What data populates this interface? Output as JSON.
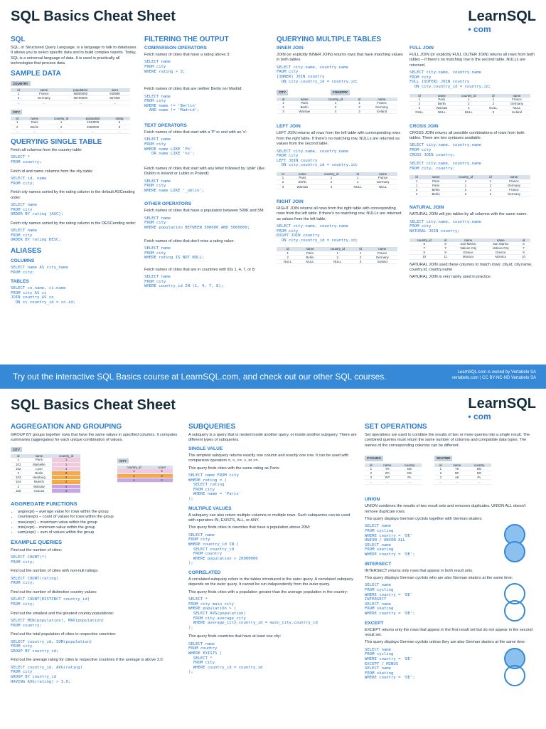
{
  "page1": {
    "title": "SQL Basics Cheat Sheet",
    "logo_main": "LearnSQL",
    "logo_sub": "• com",
    "col1": {
      "sql_heading": "SQL",
      "sql_text": "SQL, or Structured Query Language, is a language to talk to databases. It allows you to select specific data and to build complex reports. Today, SQL is a universal language of data. It is used in practically all technologies that process data.",
      "sample_heading": "SAMPLE DATA",
      "country_caption": "COUNTRY",
      "country_headers": [
        "id",
        "name",
        "population",
        "area"
      ],
      "country_rows": [
        [
          "1",
          "France",
          "66600000",
          "640680"
        ],
        [
          "2",
          "Germany",
          "80700000",
          "357000"
        ],
        [
          "...",
          "...",
          "...",
          "..."
        ]
      ],
      "city_caption": "CITY",
      "city_headers": [
        "id",
        "name",
        "country_id",
        "population",
        "rating"
      ],
      "city_rows": [
        [
          "1",
          "Paris",
          "1",
          "2243000",
          "5"
        ],
        [
          "2",
          "Berlin",
          "2",
          "3460000",
          "3"
        ],
        [
          "...",
          "...",
          "...",
          "...",
          "..."
        ]
      ],
      "qst_heading": "QUERYING SINGLE TABLE",
      "qst_t1": "Fetch all columns from the country table:",
      "qst_c1": "SELECT *\nFROM country;",
      "qst_t2": "Fetch id and name columns from the city table:",
      "qst_c2": "SELECT id, name\nFROM city;",
      "qst_t3": "Fetch city names sorted by the rating column in the default ASCending order:",
      "qst_c3": "SELECT name\nFROM city\nORDER BY rating [ASC];",
      "qst_t4": "Fetch city names sorted by the rating column in the DESCending order:",
      "qst_c4": "SELECT name\nFROM city\nORDER BY rating DESC;",
      "alias_heading": "ALIASES",
      "alias_cols": "COLUMNS",
      "alias_c1": "SELECT name AS city_name\nFROM city;",
      "alias_tables": "TABLES",
      "alias_c2": "SELECT co.name, ci.name\nFROM city AS ci\nJOIN country AS co\n  ON ci.country_id = co.id;"
    },
    "col2": {
      "heading": "FILTERING THE OUTPUT",
      "comp_heading": "COMPARISON OPERATORS",
      "t1": "Fetch names of cities that have a rating above 3:",
      "c1": "SELECT name\nFROM city\nWHERE rating > 3;",
      "t2": "Fetch names of cities that are neither Berlin nor Madrid:",
      "c2": "SELECT name\nFROM city\nWHERE name != 'Berlin'\n  AND name != 'Madrid';",
      "text_heading": "TEXT OPERATORS",
      "t3": "Fetch names of cities that start with a 'P' or end with an 's':",
      "c3": "SELECT name\nFROM city\nWHERE name LIKE 'P%'\n   OR name LIKE '%s';",
      "t4": "Fetch names of cities that start with any letter followed by 'ublin' (like Dublin in Ireland or Lublin in Poland):",
      "c4": "SELECT name\nFROM city\nWHERE name LIKE '_ublin';",
      "other_heading": "OTHER OPERATORS",
      "t5": "Fetch names of cities that have a population between 500K and 5M:",
      "c5": "SELECT name\nFROM city\nWHERE population BETWEEN 500000 AND 5000000;",
      "t6": "Fetch names of cities that don't miss a rating value:",
      "c6": "SELECT name\nFROM city\nWHERE rating IS NOT NULL;",
      "t7": "Fetch names of cities that are in countries with IDs 1, 4, 7, or 8:",
      "c7": "SELECT name\nFROM city\nWHERE country_id IN (1, 4, 7, 8);"
    },
    "col3": {
      "heading": "QUERYING MULTIPLE TABLES",
      "inner_heading": "INNER JOIN",
      "inner_text": "JOIN (or explicitly INNER JOIN) returns rows that have matching values in both tables.",
      "inner_code": "SELECT city.name, country.name\nFROM city\n[INNER] JOIN country\n  ON city.country_id = country.id;",
      "left_heading": "LEFT JOIN",
      "left_text": "LEFT JOIN returns all rows from the left table with corresponding rows from the right table. If there's no matching row, NULLs are returned as values from the second table.",
      "left_code": "SELECT city.name, country.name\nFROM city\nLEFT JOIN country\n  ON city.country_id = country.id;",
      "right_heading": "RIGHT JOIN",
      "right_text": "RIGHT JOIN returns all rows from the right table with corresponding rows from the left table. If there's no matching row, NULLs are returned as values from the left table.",
      "right_code": "SELECT city.name, country.name\nFROM city\nRIGHT JOIN country\n  ON city.country_id = country.id;"
    },
    "col4": {
      "full_heading": "FULL JOIN",
      "full_text": "FULL JOIN (or explicitly FULL OUTER JOIN) returns all rows from both tables – if there's no matching row in the second table, NULLs are returned.",
      "full_code": "SELECT city.name, country.name\nFROM city\nFULL [OUTER] JOIN country\n  ON city.country_id = country.id;",
      "cross_heading": "CROSS JOIN",
      "cross_text": "CROSS JOIN returns all possible combinations of rows from both tables. There are two syntaxes available.",
      "cross_code1": "SELECT city.name, country.name\nFROM city\nCROSS JOIN country;",
      "cross_code2": "SELECT city.name, country.name\nFROM city, country;",
      "natural_heading": "NATURAL JOIN",
      "natural_text": "NATURAL JOIN will join tables by all columns with the same name.",
      "natural_code": "SELECT city.name, country.name\nFROM city\nNATURAL JOIN country;",
      "natural_note1": "NATURAL JOIN used these columns to match rows: city.id, city.name, country.id, country.name",
      "natural_note2": "NATURAL JOIN is very rarely used in practice."
    },
    "join_tables": {
      "city_caption": "CITY",
      "country_caption": "COUNTRY",
      "headers": [
        "id",
        "name",
        "country_id",
        "id",
        "name"
      ],
      "inner_rows": [
        [
          "1",
          "Paris",
          "1",
          "1",
          "France"
        ],
        [
          "2",
          "Berlin",
          "2",
          "2",
          "Germany"
        ],
        [
          "3",
          "Warsaw",
          "4",
          "3",
          "Iceland"
        ]
      ],
      "left_rows": [
        [
          "1",
          "Paris",
          "1",
          "1",
          "France"
        ],
        [
          "2",
          "Berlin",
          "2",
          "2",
          "Germany"
        ],
        [
          "3",
          "Warsaw",
          "4",
          "NULL",
          "NULL"
        ]
      ],
      "right_rows": [
        [
          "1",
          "Paris",
          "1",
          "1",
          "France"
        ],
        [
          "2",
          "Berlin",
          "2",
          "2",
          "Germany"
        ],
        [
          "NULL",
          "NULL",
          "NULL",
          "3",
          "Iceland"
        ]
      ],
      "full_rows": [
        [
          "1",
          "Paris",
          "1",
          "1",
          "France"
        ],
        [
          "2",
          "Berlin",
          "2",
          "2",
          "Germany"
        ],
        [
          "3",
          "Warsaw",
          "4",
          "NULL",
          "NULL"
        ],
        [
          "NULL",
          "NULL",
          "NULL",
          "3",
          "Iceland"
        ]
      ],
      "cross_rows": [
        [
          "1",
          "Paris",
          "1",
          "1",
          "France"
        ],
        [
          "1",
          "Paris",
          "1",
          "2",
          "Germany"
        ],
        [
          "2",
          "Berlin",
          "2",
          "1",
          "France"
        ],
        [
          "2",
          "Berlin",
          "2",
          "2",
          "Germany"
        ]
      ],
      "natural_headers": [
        "country_id",
        "id",
        "name",
        "name",
        "id"
      ],
      "natural_rows": [
        [
          "6",
          "6",
          "San Marino",
          "San Marino",
          "6"
        ],
        [
          "7",
          "7",
          "Vatican City",
          "Vatican City",
          "7"
        ],
        [
          "5",
          "9",
          "Greece",
          "Greece",
          "9"
        ],
        [
          "10",
          "11",
          "Monaco",
          "Monaco",
          "10"
        ]
      ]
    }
  },
  "banner": {
    "text": "Try out the interactive SQL Basics course at LearnSQL.com, and check out our other SQL courses.",
    "small1": "LearnSQL.com is owned by Vertabelo SA",
    "small2": "vertabelo.com | CC BY-NC-ND Vertabelo SA"
  },
  "page2": {
    "title": "SQL Basics Cheat Sheet",
    "logo_main": "LearnSQL",
    "logo_sub": "• com",
    "col1": {
      "heading": "AGGREGATION AND GROUPING",
      "text": "GROUP BY groups together rows that have the same values in specified columns. It computes summaries (aggregates) for each unique combination of values.",
      "city_caption": "CITY",
      "city_headers": [
        "id",
        "name",
        "country_id"
      ],
      "city_rows": [
        [
          "1",
          "Paris",
          "1"
        ],
        [
          "101",
          "Marseille",
          "1"
        ],
        [
          "102",
          "Lyon",
          "1"
        ],
        [
          "2",
          "Berlin",
          "2"
        ],
        [
          "103",
          "Hamburg",
          "2"
        ],
        [
          "104",
          "Munich",
          "2"
        ],
        [
          "3",
          "Warsaw",
          "4"
        ],
        [
          "105",
          "Cracow",
          "4"
        ]
      ],
      "agg_caption": "CITY",
      "agg_headers": [
        "country_id",
        "count"
      ],
      "agg_rows": [
        [
          "1",
          "3"
        ],
        [
          "2",
          "3"
        ],
        [
          "4",
          "2"
        ]
      ],
      "func_heading": "AGGREGATE FUNCTIONS",
      "funcs": [
        "avg(expr) − average value for rows within the group",
        "count(expr) − count of values for rows within the group",
        "max(expr) − maximum value within the group",
        "min(expr) − minimum value within the group",
        "sum(expr) − sum of values within the group"
      ],
      "ex_heading": "EXAMPLE QUERIES",
      "e1t": "Find out the number of cities:",
      "e1c": "SELECT COUNT(*)\nFROM city;",
      "e2t": "Find out the number of cities with non-null ratings:",
      "e2c": "SELECT COUNT(rating)\nFROM city;",
      "e3t": "Find out the number of distinctive country values:",
      "e3c": "SELECT COUNT(DISTINCT country_id)\nFROM city;",
      "e4t": "Find out the smallest and the greatest country populations:",
      "e4c": "SELECT MIN(population), MAX(population)\nFROM country;",
      "e5t": "Find out the total population of cities in respective countries:",
      "e5c": "SELECT country_id, SUM(population)\nFROM city\nGROUP BY country_id;",
      "e6t": "Find out the average rating for cities in respective countries if the average is above 3.0:",
      "e6c": "SELECT country_id, AVG(rating)\nFROM city\nGROUP BY country_id\nHAVING AVG(rating) > 3.0;"
    },
    "col2": {
      "heading": "SUBQUERIES",
      "text": "A subquery is a query that is nested inside another query, or inside another subquery. There are different types of subqueries.",
      "single_heading": "SINGLE VALUE",
      "single_text": "The simplest subquery returns exactly one column and exactly one row. It can be used with comparison operators =, <, <=, >, or >=.",
      "single_t": "This query finds cities with the same rating as Paris:",
      "single_c": "SELECT name FROM city\nWHERE rating = (\n  SELECT rating\n  FROM city\n  WHERE name = 'Paris'\n);",
      "multi_heading": "MULTIPLE VALUES",
      "multi_text": "A subquery can also return multiple columns or multiple rows. Such subqueries can be used with operators IN, EXISTS, ALL, or ANY.",
      "multi_t": "This query finds cities in countries that have a population above 20M:",
      "multi_c": "SELECT name\nFROM city\nWHERE country_id IN (\n  SELECT country_id\n  FROM country\n  WHERE population > 20000000\n);",
      "corr_heading": "CORRELATED",
      "corr_text": "A correlated subquery refers to the tables introduced in the outer query. A correlated subquery depends on the outer query. It cannot be run independently from the outer query.",
      "corr_t": "This query finds cities with a population greater than the average population in the country:",
      "corr_c": "SELECT *\nFROM city main_city\nWHERE population > (\n  SELECT AVG(population)\n  FROM city average_city\n  WHERE average_city.country_id = main_city.country_id\n);",
      "corr_t2": "This query finds countries that have at least one city:",
      "corr_c2": "SELECT name\nFROM country\nWHERE EXISTS (\n  SELECT *\n  FROM city\n  WHERE country_id = country.id\n);"
    },
    "col3": {
      "heading": "SET OPERATIONS",
      "text": "Set operations are used to combine the results of two or more queries into a single result. The combined queries must return the same number of columns and compatible data types. The names of the corresponding columns can be different.",
      "cycling_caption": "CYCLING",
      "skating_caption": "SKATING",
      "set_headers": [
        "id",
        "name",
        "country"
      ],
      "cycling_rows": [
        [
          "1",
          "YK",
          "DE"
        ],
        [
          "2",
          "ZG",
          "DE"
        ],
        [
          "3",
          "WT",
          "PL"
        ],
        [
          "...",
          "...",
          "..."
        ]
      ],
      "skating_rows": [
        [
          "1",
          "YK",
          "DE"
        ],
        [
          "2",
          "DF",
          "DE"
        ],
        [
          "3",
          "AK",
          "PL"
        ],
        [
          "...",
          "...",
          "..."
        ]
      ],
      "union_heading": "UNION",
      "union_text": "UNION combines the results of two result sets and removes duplicates. UNION ALL doesn't remove duplicate rows.",
      "union_t": "This query displays German cyclists together with German skaters:",
      "union_c": "SELECT name\nFROM cycling\nWHERE country = 'DE'\nUNION / UNION ALL\nSELECT name\nFROM skating\nWHERE country = 'DE';",
      "inter_heading": "INTERSECT",
      "inter_text": "INTERSECT returns only rows that appear in both result sets.",
      "inter_t": "This query displays German cyclists who are also German skaters at the same time:",
      "inter_c": "SELECT name\nFROM cycling\nWHERE country = 'DE'\nINTERSECT\nSELECT name\nFROM skating\nWHERE country = 'DE';",
      "except_heading": "EXCEPT",
      "except_text": "EXCEPT returns only the rows that appear in the first result set but do not appear in the second result set.",
      "except_t": "This query displays German cyclists unless they are also German skaters at the same time:",
      "except_c": "SELECT name\nFROM cycling\nWHERE country = 'DE'\nEXCEPT / MINUS\nSELECT name\nFROM skating\nWHERE country = 'DE';"
    }
  }
}
